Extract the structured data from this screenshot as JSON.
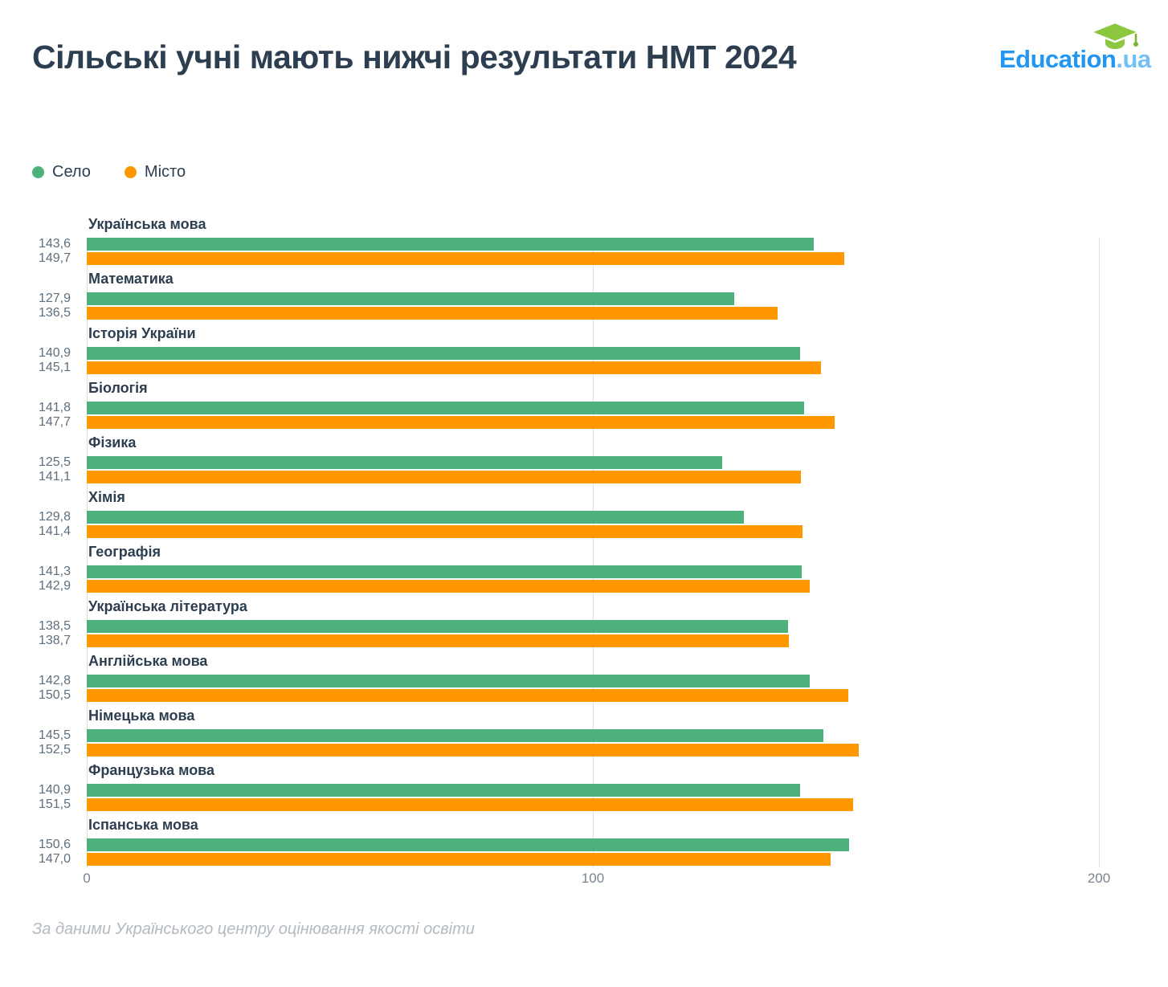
{
  "header": {
    "title": "Сільські учні мають нижчі результати НМТ 2024",
    "logo": {
      "brand": "Education",
      "tld": ".ua"
    }
  },
  "legend": [
    {
      "label": "Село",
      "color": "#4db17e"
    },
    {
      "label": "Місто",
      "color": "#ff9800"
    }
  ],
  "chart_data": {
    "type": "bar",
    "orientation": "horizontal",
    "title": "Сільські учні мають нижчі результати НМТ 2024",
    "categories": [
      "Українська мова",
      "Математика",
      "Історія України",
      "Біологія",
      "Фізика",
      "Хімія",
      "Географія",
      "Українська література",
      "Англійська мова",
      "Німецька мова",
      "Французька мова",
      "Іспанська мова"
    ],
    "series": [
      {
        "name": "Село",
        "color": "#4db17e",
        "values": [
          143.6,
          127.9,
          140.9,
          141.8,
          125.5,
          129.8,
          141.3,
          138.5,
          142.8,
          145.5,
          140.9,
          150.6
        ]
      },
      {
        "name": "Місто",
        "color": "#ff9800",
        "values": [
          149.7,
          136.5,
          145.1,
          147.7,
          141.1,
          141.4,
          142.9,
          138.7,
          150.5,
          152.5,
          151.5,
          147.0
        ]
      }
    ],
    "xlim": [
      0,
      200
    ],
    "x_ticks": [
      "0",
      "100",
      "200"
    ],
    "grid": true,
    "legend_position": "top-left",
    "decimal_separator": ","
  },
  "footer": {
    "source": "За даними Українського центру оцінювання якості освіти"
  }
}
